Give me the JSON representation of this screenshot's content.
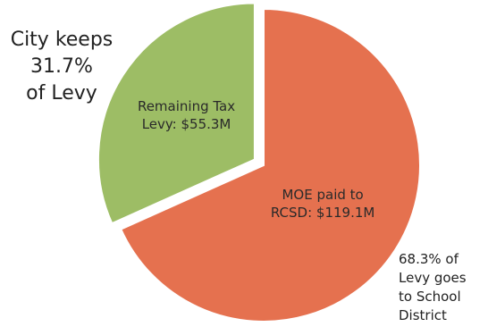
{
  "chart_data": {
    "type": "pie",
    "slices": [
      {
        "name": "Remaining Tax Levy",
        "label": "Remaining Tax Levy: $55.3M",
        "label_lines": [
          "Remaining Tax",
          "Levy: $55.3M"
        ],
        "value": 55.3,
        "percent": 31.7,
        "color": "#9dbd65",
        "exploded": true
      },
      {
        "name": "MOE paid to RCSD",
        "label": "MOE paid to RCSD: $119.1M",
        "label_lines": [
          "MOE paid to",
          "RCSD: $119.1M"
        ],
        "value": 119.1,
        "percent": 68.3,
        "color": "#e5714f",
        "exploded": false
      }
    ],
    "annotations": [
      {
        "text": "City keeps\n31.7%\nof Levy",
        "placement": "top-left"
      },
      {
        "text": "68.3% of\nLevy goes\nto School\nDistrict",
        "placement": "bottom-right"
      }
    ]
  }
}
